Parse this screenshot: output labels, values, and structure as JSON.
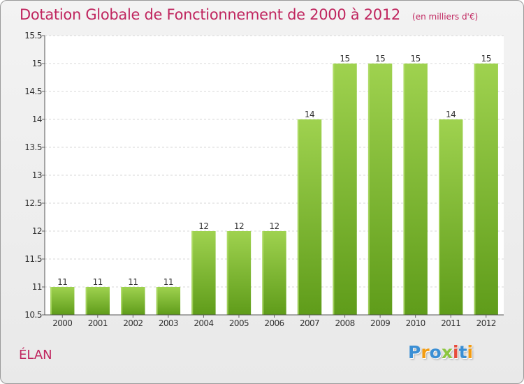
{
  "page": {
    "title": "Dotation Globale de Fonctionnement de 2000 à 2012",
    "subtitle": "(en milliers d'€)",
    "commune": "ÉLAN"
  },
  "logo": {
    "text": "Proxiti",
    "letters": [
      {
        "char": "P",
        "color": "#3b8fd4"
      },
      {
        "char": "r",
        "color": "#f39c12"
      },
      {
        "char": "o",
        "color": "#3b8fd4"
      },
      {
        "char": "x",
        "color": "#8cc63f"
      },
      {
        "char": "i",
        "color": "#e74c3c"
      },
      {
        "char": "t",
        "color": "#3b8fd4"
      },
      {
        "char": "i",
        "color": "#f39c12"
      }
    ]
  },
  "chart_data": {
    "type": "bar",
    "categories": [
      "2000",
      "2001",
      "2002",
      "2003",
      "2004",
      "2005",
      "2006",
      "2007",
      "2008",
      "2009",
      "2010",
      "2011",
      "2012"
    ],
    "values": [
      11,
      11,
      11,
      11,
      12,
      12,
      12,
      14,
      15,
      15,
      15,
      14,
      15
    ],
    "data_labels": [
      "11",
      "11",
      "11",
      "11",
      "12",
      "12",
      "12",
      "14",
      "15",
      "15",
      "15",
      "14",
      "15"
    ],
    "ylim": [
      10.5,
      15.5
    ],
    "yticks": [
      10.5,
      11,
      11.5,
      12,
      12.5,
      13,
      13.5,
      14,
      14.5,
      15,
      15.5
    ],
    "ytick_labels": [
      "10.5",
      "11",
      "11.5",
      "12",
      "12.5",
      "13",
      "13.5",
      "14",
      "14.5",
      "15",
      "15.5"
    ],
    "xlabel": "",
    "ylabel": "",
    "grid": true,
    "bar_color": "#8cc63f",
    "bar_color_dark": "#5f9c1a"
  }
}
